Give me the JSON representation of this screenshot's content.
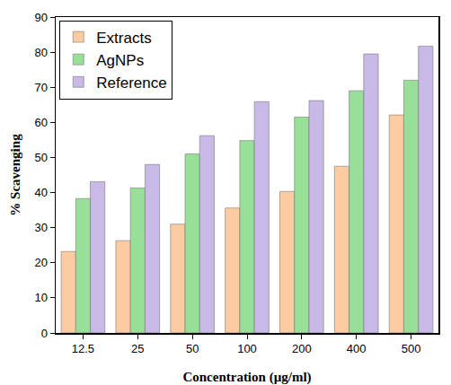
{
  "chart_data": {
    "type": "bar",
    "x_label": "Concentration (µg/ml)",
    "y_label": "% Scavenging",
    "categories": [
      "12.5",
      "25",
      "50",
      "100",
      "200",
      "400",
      "500"
    ],
    "series": [
      {
        "name": "Extracts",
        "color": "#fdcba2",
        "values": [
          23.2,
          26.3,
          31.0,
          35.6,
          40.3,
          47.5,
          62.1
        ]
      },
      {
        "name": "AgNPs",
        "color": "#98df98",
        "values": [
          38.3,
          41.3,
          51.0,
          54.8,
          61.5,
          69.0,
          72.0
        ]
      },
      {
        "name": "Reference",
        "color": "#c8b9e6",
        "values": [
          43.1,
          48.0,
          56.2,
          65.9,
          66.2,
          79.5,
          81.7
        ]
      }
    ],
    "ylim": [
      0,
      90
    ],
    "yticks": [
      0,
      10,
      20,
      30,
      40,
      50,
      60,
      70,
      80,
      90
    ],
    "grid": false,
    "legend": "top-left"
  }
}
